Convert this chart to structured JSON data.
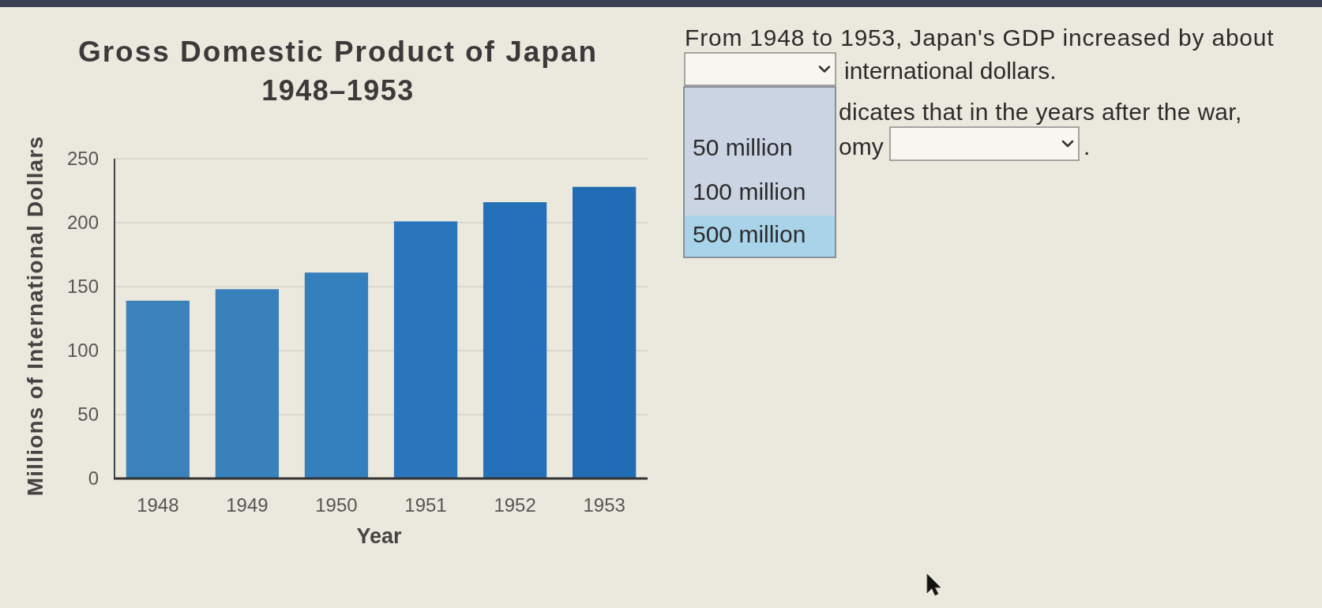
{
  "chart_data": {
    "type": "bar",
    "title": "Gross Domestic Product of Japan",
    "subtitle": "1948–1953",
    "xlabel": "Year",
    "ylabel": "Millions of International Dollars",
    "categories": [
      "1948",
      "1949",
      "1950",
      "1951",
      "1952",
      "1953"
    ],
    "values": [
      139,
      148,
      161,
      201,
      216,
      228
    ],
    "colors": [
      "#3a82b9",
      "#3881ba",
      "#3480bd",
      "#2a76bd",
      "#2471b9",
      "#206cb5"
    ],
    "ylim": [
      0,
      250
    ],
    "yticks": [
      0,
      50,
      100,
      150,
      200,
      250
    ],
    "grid": "y",
    "annotations": [
      "From 1948 to 1953, Japan's GDP increased by about",
      "international dollars.",
      "dicates that in the years after the war,",
      "omy",
      ".",
      "50 million",
      "100 million",
      "500 million"
    ]
  }
}
